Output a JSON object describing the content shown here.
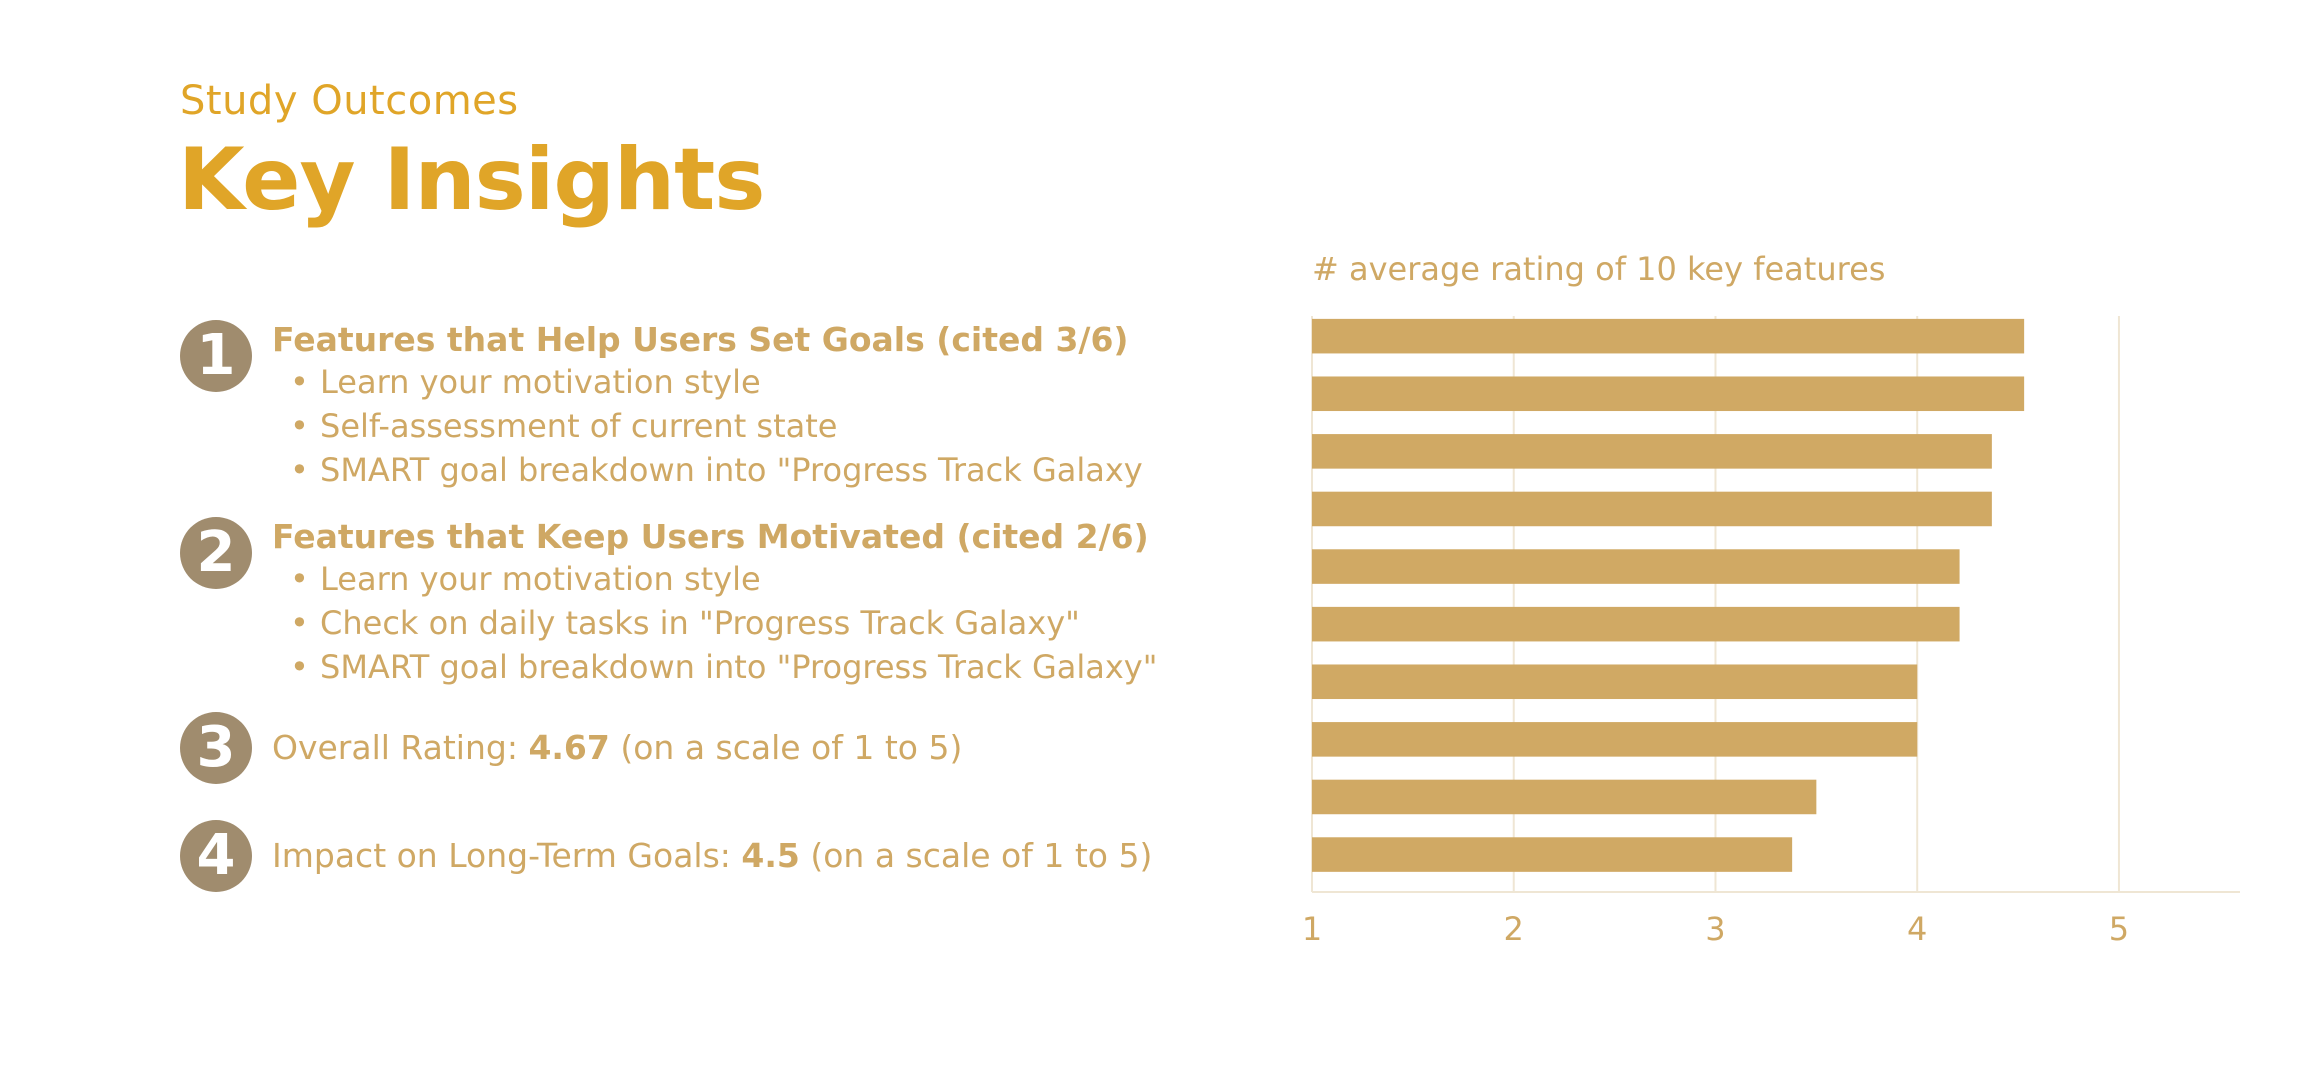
{
  "header": {
    "eyebrow": "Study Outcomes",
    "title": "Key Insights"
  },
  "insights": [
    {
      "number": "1",
      "heading": "Features that Help Users Set Goals (cited 3/6)",
      "bullets": [
        "Learn your motivation style",
        "Self-assessment of current state",
        "SMART goal breakdown into \"Progress Track Galaxy"
      ]
    },
    {
      "number": "2",
      "heading": "Features that Keep Users Motivated (cited 2/6)",
      "bullets": [
        "Learn your motivation style",
        "Check on daily tasks in \"Progress Track Galaxy\"",
        "SMART goal breakdown into \"Progress Track Galaxy\""
      ]
    },
    {
      "number": "3",
      "label": "Overall Rating: ",
      "value": "4.67",
      "suffix": " (on a scale of 1 to 5)"
    },
    {
      "number": "4",
      "label": "Impact on Long-Term Goals: ",
      "value": "4.5",
      "suffix": " (on a scale of 1 to 5)"
    }
  ],
  "colors": {
    "accent": "#E0A528",
    "text": "#CFA864",
    "badge": "#A08C6E",
    "bar": "#D0A964",
    "grid": "#EFE6D4"
  },
  "chart_data": {
    "type": "bar",
    "orientation": "horizontal",
    "title": "# average rating of 10 key features",
    "xlim": [
      1,
      5.6
    ],
    "xticks": [
      1,
      2,
      3,
      4,
      5
    ],
    "values": [
      4.53,
      4.53,
      4.37,
      4.37,
      4.21,
      4.21,
      4.0,
      4.0,
      3.5,
      3.38
    ],
    "grid": "vertical"
  }
}
